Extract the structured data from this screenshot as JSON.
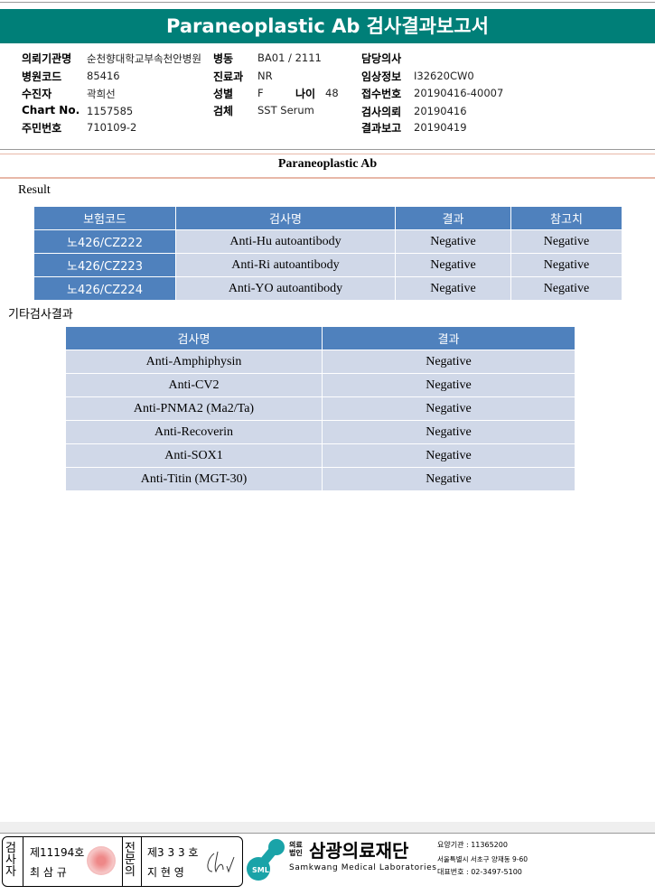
{
  "title": "Paraneoplastic Ab 검사결과보고서",
  "info": {
    "hospital_label": "의뢰기관명",
    "hospital": "순천향대학교부속천안병원",
    "ward_label": "병동",
    "ward": "BA01 / 2111",
    "doctor_label": "담당의사",
    "doctor": "",
    "code_label": "병원코드",
    "code": "85416",
    "dept_label": "진료과",
    "dept": "NR",
    "clinical_label": "임상정보",
    "clinical": "I32620CW0",
    "patient_label": "수진자",
    "patient": "곽희선",
    "sex_label": "성별",
    "sex": "F",
    "age_label": "나이",
    "age": "48",
    "accession_label": "접수번호",
    "accession": "20190416-40007",
    "chart_label": "Chart No.",
    "chart": "1157585",
    "specimen_label": "검체",
    "specimen": "SST Serum",
    "request_label": "검사의뢰",
    "request": "20190416",
    "id_label": "주민번호",
    "id": "710109-2",
    "report_label": "결과보고",
    "report": "20190419"
  },
  "section_title": "Paraneoplastic Ab",
  "result_label": "Result",
  "table1": {
    "headers": [
      "보험코드",
      "검사명",
      "결과",
      "참고치"
    ],
    "rows": [
      [
        "노426/CZ222",
        "Anti-Hu autoantibody",
        "Negative",
        "Negative"
      ],
      [
        "노426/CZ223",
        "Anti-Ri autoantibody",
        "Negative",
        "Negative"
      ],
      [
        "노426/CZ224",
        "Anti-YO autoantibody",
        "Negative",
        "Negative"
      ]
    ]
  },
  "other_label": "기타검사결과",
  "table2": {
    "headers": [
      "검사명",
      "결과"
    ],
    "rows": [
      [
        "Anti-Amphiphysin",
        "Negative"
      ],
      [
        "Anti-CV2",
        "Negative"
      ],
      [
        "Anti-PNMA2 (Ma2/Ta)",
        "Negative"
      ],
      [
        "Anti-Recoverin",
        "Negative"
      ],
      [
        "Anti-SOX1",
        "Negative"
      ],
      [
        "Anti-Titin (MGT-30)",
        "Negative"
      ]
    ]
  },
  "footer": {
    "tester_label": "검사자",
    "tester_no": "제11194호",
    "tester_name": "최 삼 규",
    "specialist_label": "전문의",
    "specialist_no": "제3 3 3 호",
    "specialist_name": "지 현 영",
    "logo_text": "SML",
    "org_type": "의료법인",
    "org_name": "삼광의료재단",
    "org_en": "Samkwang Medical Laboratories",
    "care_no": "요양기관 : 11365200",
    "address": "서울특별시 서초구 양재동 9-60",
    "phone": "대표번호 : 02-3497-5100"
  }
}
